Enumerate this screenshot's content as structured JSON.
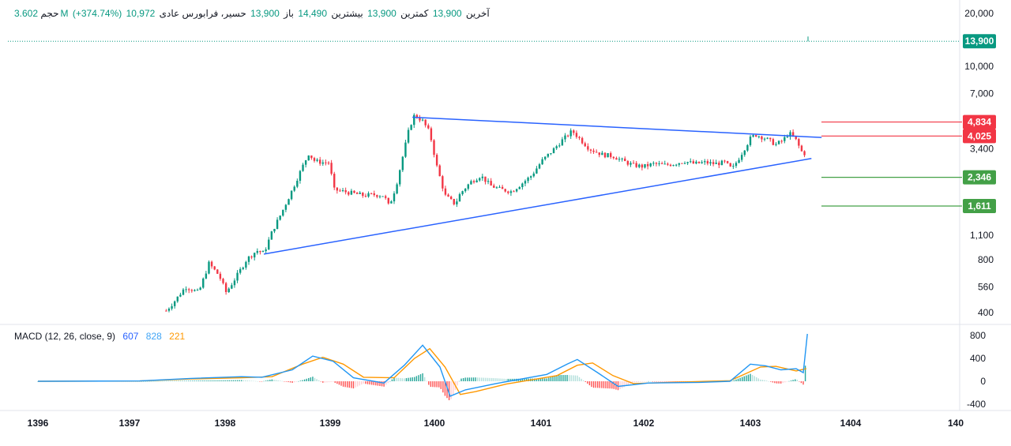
{
  "header": {
    "symbol": "حسير، فرابورس عادی",
    "open_label": "باز",
    "open_value": "13,900",
    "high_label": "بیشترین",
    "high_value": "14,490",
    "low_label": "کمترین",
    "low_value": "13,900",
    "close_label": "آخرین",
    "close_value": "13,900",
    "change_value": "10,972",
    "change_pct": "(+374.74%)",
    "volume_label": "حجم",
    "volume_value": "3.602M"
  },
  "macd_legend": {
    "title": "MACD (12, 26, close, 9)",
    "hist_value": "607",
    "macd_value": "828",
    "signal_value": "221"
  },
  "colors": {
    "up": "#089981",
    "down": "#f23645",
    "trendline": "#2962ff",
    "macd_line": "#2196f3",
    "signal_line": "#ff9800",
    "resistance": "#f23645",
    "support": "#43a047",
    "last_price_badge": "#089981"
  },
  "chart_data": {
    "type": "candlestick",
    "scale": "log",
    "price_ticks": [
      "20,000",
      "10,000",
      "7,000",
      "3,400",
      "1,100",
      "800",
      "560",
      "400"
    ],
    "price_tick_values": [
      20000,
      10000,
      7000,
      3400,
      1100,
      800,
      560,
      400
    ],
    "time_ticks": [
      "1396",
      "1397",
      "1398",
      "1399",
      "1400",
      "1401",
      "1402",
      "1403",
      "1404",
      "140"
    ],
    "last_price": {
      "label": "13,900",
      "value": 13900
    },
    "levels": [
      {
        "label": "4,834",
        "value": 4834,
        "kind": "resistance"
      },
      {
        "label": "4,025",
        "value": 4025,
        "kind": "resistance"
      },
      {
        "label": "2,346",
        "value": 2346,
        "kind": "support"
      },
      {
        "label": "1,611",
        "value": 1611,
        "kind": "support"
      }
    ],
    "trendlines": [
      {
        "name": "upper",
        "from": [
          1399.68,
          5150
        ],
        "to": [
          1403.7,
          3950
        ]
      },
      {
        "name": "lower",
        "from": [
          1398.22,
          860
        ],
        "to": [
          1403.6,
          3000
        ]
      }
    ],
    "price_path": [
      [
        1397.26,
        410
      ],
      [
        1397.35,
        470
      ],
      [
        1397.45,
        560
      ],
      [
        1397.58,
        520
      ],
      [
        1397.68,
        760
      ],
      [
        1397.78,
        650
      ],
      [
        1397.85,
        520
      ],
      [
        1397.95,
        640
      ],
      [
        1398.05,
        800
      ],
      [
        1398.15,
        900
      ],
      [
        1398.22,
        870
      ],
      [
        1398.3,
        1150
      ],
      [
        1398.4,
        1500
      ],
      [
        1398.5,
        2000
      ],
      [
        1398.6,
        2700
      ],
      [
        1398.66,
        3200
      ],
      [
        1398.72,
        2900
      ],
      [
        1398.8,
        2850
      ],
      [
        1398.87,
        2850
      ],
      [
        1398.9,
        2000
      ],
      [
        1399.0,
        1950
      ],
      [
        1399.1,
        1900
      ],
      [
        1399.2,
        1850
      ],
      [
        1399.3,
        1870
      ],
      [
        1399.4,
        1850
      ],
      [
        1399.45,
        1600
      ],
      [
        1399.52,
        2100
      ],
      [
        1399.58,
        3000
      ],
      [
        1399.65,
        4500
      ],
      [
        1399.7,
        5300
      ],
      [
        1399.78,
        4900
      ],
      [
        1399.85,
        4200
      ],
      [
        1399.92,
        2700
      ],
      [
        1400.0,
        1850
      ],
      [
        1400.1,
        1650
      ],
      [
        1400.15,
        1900
      ],
      [
        1400.25,
        2200
      ],
      [
        1400.35,
        2400
      ],
      [
        1400.45,
        2100
      ],
      [
        1400.55,
        2000
      ],
      [
        1400.65,
        1950
      ],
      [
        1400.75,
        2150
      ],
      [
        1400.85,
        2400
      ],
      [
        1400.95,
        2900
      ],
      [
        1401.05,
        3300
      ],
      [
        1401.15,
        3800
      ],
      [
        1401.25,
        4300
      ],
      [
        1401.32,
        3900
      ],
      [
        1401.42,
        3400
      ],
      [
        1401.55,
        3150
      ],
      [
        1401.65,
        3100
      ],
      [
        1401.75,
        2900
      ],
      [
        1401.85,
        2750
      ],
      [
        1401.95,
        2700
      ],
      [
        1402.05,
        2800
      ],
      [
        1402.15,
        2750
      ],
      [
        1402.25,
        2800
      ],
      [
        1402.35,
        2900
      ],
      [
        1402.45,
        2800
      ],
      [
        1402.55,
        2850
      ],
      [
        1402.65,
        2800
      ],
      [
        1402.75,
        2850
      ],
      [
        1402.82,
        2600
      ],
      [
        1402.9,
        3100
      ],
      [
        1403.0,
        3900
      ],
      [
        1403.05,
        4100
      ],
      [
        1403.15,
        3900
      ],
      [
        1403.25,
        3600
      ],
      [
        1403.32,
        3800
      ],
      [
        1403.38,
        4200
      ],
      [
        1403.45,
        3800
      ],
      [
        1403.5,
        3300
      ],
      [
        1403.55,
        3150
      ]
    ],
    "macd_ticks": [
      "800",
      "400",
      "0",
      "-400"
    ],
    "macd_tick_values": [
      800,
      400,
      0,
      -400
    ],
    "macd_path": [
      [
        1396.0,
        0
      ],
      [
        1397.0,
        5
      ],
      [
        1397.5,
        50
      ],
      [
        1398.0,
        80
      ],
      [
        1398.2,
        70
      ],
      [
        1398.5,
        200
      ],
      [
        1398.7,
        440
      ],
      [
        1398.9,
        350
      ],
      [
        1399.1,
        60
      ],
      [
        1399.4,
        -30
      ],
      [
        1399.6,
        280
      ],
      [
        1399.78,
        630
      ],
      [
        1399.95,
        250
      ],
      [
        1400.05,
        -260
      ],
      [
        1400.2,
        -150
      ],
      [
        1400.5,
        -40
      ],
      [
        1401.0,
        120
      ],
      [
        1401.2,
        300
      ],
      [
        1401.3,
        380
      ],
      [
        1401.5,
        150
      ],
      [
        1401.7,
        -90
      ],
      [
        1402.0,
        -30
      ],
      [
        1402.5,
        -20
      ],
      [
        1402.8,
        0
      ],
      [
        1403.0,
        300
      ],
      [
        1403.15,
        270
      ],
      [
        1403.3,
        200
      ],
      [
        1403.45,
        220
      ],
      [
        1403.52,
        150
      ],
      [
        1403.56,
        828
      ]
    ],
    "signal_path": [
      [
        1396.0,
        0
      ],
      [
        1397.0,
        5
      ],
      [
        1397.5,
        40
      ],
      [
        1398.0,
        60
      ],
      [
        1398.3,
        80
      ],
      [
        1398.6,
        300
      ],
      [
        1398.8,
        420
      ],
      [
        1399.0,
        300
      ],
      [
        1399.2,
        70
      ],
      [
        1399.5,
        60
      ],
      [
        1399.7,
        400
      ],
      [
        1399.85,
        570
      ],
      [
        1400.0,
        250
      ],
      [
        1400.15,
        -230
      ],
      [
        1400.3,
        -180
      ],
      [
        1400.6,
        -50
      ],
      [
        1401.1,
        100
      ],
      [
        1401.3,
        280
      ],
      [
        1401.45,
        320
      ],
      [
        1401.65,
        100
      ],
      [
        1401.85,
        -40
      ],
      [
        1402.2,
        -20
      ],
      [
        1402.8,
        10
      ],
      [
        1403.1,
        250
      ],
      [
        1403.25,
        260
      ],
      [
        1403.45,
        180
      ],
      [
        1403.55,
        221
      ]
    ]
  }
}
